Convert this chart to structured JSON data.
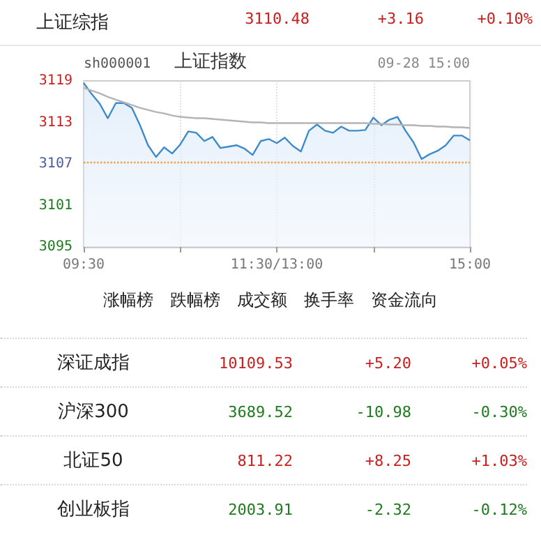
{
  "chart_data": [
    {
      "type": "other",
      "annotations": [
        "上证综指",
        "3110.48",
        "+3.16",
        "+0.10%"
      ]
    },
    {
      "type": "line",
      "title": "上证指数",
      "subtitle": "sh000001",
      "annotations": [
        "09-28 15:00"
      ],
      "categories": [
        "09:30",
        null,
        null,
        null,
        null,
        null,
        null,
        null,
        null,
        null,
        null,
        null,
        null,
        null,
        null,
        null,
        null,
        null,
        null,
        null,
        null,
        null,
        null,
        null,
        "11:30/13:00",
        null,
        null,
        null,
        null,
        null,
        null,
        null,
        null,
        null,
        null,
        null,
        null,
        null,
        null,
        null,
        null,
        null,
        null,
        null,
        null,
        null,
        null,
        null,
        "15:00"
      ],
      "ylim": [
        3095,
        3119
      ],
      "yticks": [
        3095,
        3101,
        3107,
        3113,
        3119
      ],
      "grid": "x",
      "marker": "none",
      "ref_lines": [
        {
          "axis": "y",
          "value": 3107.32,
          "color": "#f0a040",
          "line_style": "dotted"
        }
      ],
      "series": [
        {
          "type": "area",
          "color": "#3d8bc9",
          "values": [
            3118.7,
            3117.1,
            3115.7,
            3113.6,
            3115.8,
            3115.8,
            3115.1,
            3112.6,
            3109.7,
            3108.0,
            3109.4,
            3108.5,
            3109.8,
            3111.7,
            3111.5,
            3110.3,
            3110.9,
            3109.3,
            3109.5,
            3109.7,
            3109.2,
            3108.3,
            3110.3,
            3110.6,
            3110.0,
            3110.8,
            3109.6,
            3108.8,
            3111.8,
            3112.7,
            3111.8,
            3111.5,
            3112.4,
            3111.8,
            3111.8,
            3111.9,
            3113.7,
            3112.6,
            3113.4,
            3113.8,
            3111.8,
            3110.1,
            3107.7,
            3108.4,
            3108.9,
            3109.7,
            3111.1,
            3111.1,
            3110.4
          ]
        },
        {
          "type": "line",
          "color": "#b4b4b4",
          "values": [
            3118,
            3117.6,
            3117.2,
            3116.7,
            3116.3,
            3115.9,
            3115.5,
            3115.1,
            3114.8,
            3114.5,
            3114.3,
            3114.0,
            3113.8,
            3113.7,
            3113.6,
            3113.6,
            3113.5,
            3113.4,
            3113.3,
            3113.2,
            3113.1,
            3113.0,
            3113.0,
            3112.9,
            3112.9,
            3112.9,
            3112.9,
            3112.9,
            3112.9,
            3112.9,
            3112.9,
            3112.9,
            3112.9,
            3112.9,
            3112.9,
            3112.9,
            3112.8,
            3112.8,
            3112.7,
            3112.7,
            3112.6,
            3112.6,
            3112.5,
            3112.5,
            3112.4,
            3112.4,
            3112.3,
            3112.3,
            3112.2
          ]
        }
      ]
    },
    {
      "type": "other",
      "annotations": [
        "涨幅榜",
        "跌幅榜",
        "成交额",
        "换手率",
        "资金流向"
      ]
    },
    {
      "type": "other",
      "annotations": [
        "深证成指",
        "10109.53",
        "+5.20",
        "+0.05%",
        "沪深300",
        "3689.52",
        "-10.98",
        "-0.30%",
        "北证50",
        "811.22",
        "+8.25",
        "+1.03%",
        "创业板指",
        "2003.91",
        "-2.32",
        "-0.12%"
      ]
    }
  ]
}
